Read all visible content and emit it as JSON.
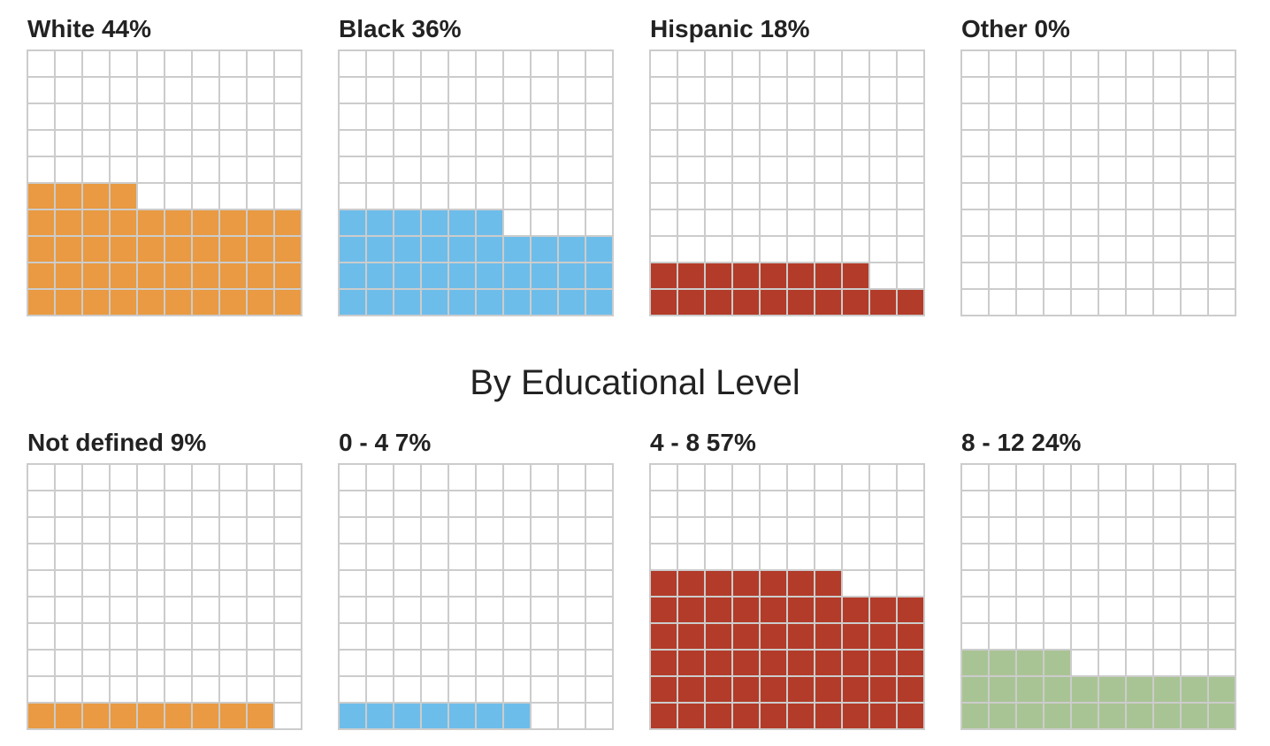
{
  "section_title": "By Educational Level",
  "chart_data": [
    {
      "type": "waffle",
      "title": "White 44%",
      "value": 44,
      "color": "#E99A42"
    },
    {
      "type": "waffle",
      "title": "Black 36%",
      "value": 36,
      "color": "#6DBDEA"
    },
    {
      "type": "waffle",
      "title": "Hispanic 18%",
      "value": 18,
      "color": "#B33B29"
    },
    {
      "type": "waffle",
      "title": "Other 0%",
      "value": 0,
      "color": "#A9C494"
    },
    {
      "type": "waffle",
      "title": "Not defined 9%",
      "value": 9,
      "color": "#E99A42"
    },
    {
      "type": "waffle",
      "title": "0 - 4 7%",
      "value": 7,
      "color": "#6DBDEA"
    },
    {
      "type": "waffle",
      "title": "4 - 8 57%",
      "value": 57,
      "color": "#B33B29"
    },
    {
      "type": "waffle",
      "title": "8 - 12 24%",
      "value": 24,
      "color": "#A9C494"
    }
  ]
}
